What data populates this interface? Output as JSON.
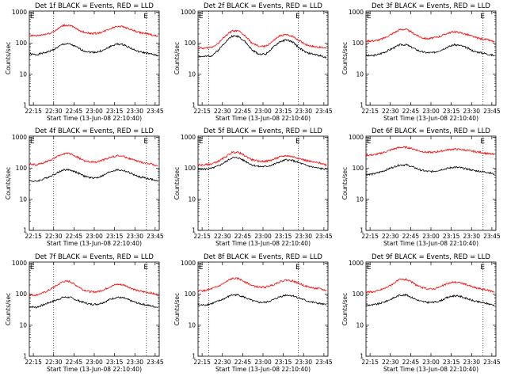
{
  "figure": {
    "xlabel": "Start Time (13-Jun-08 22:10:40)",
    "ylabel": "Counts/sec",
    "x_ticks": [
      "22:15",
      "22:30",
      "22:45",
      "23:00",
      "23:15",
      "23:30",
      "23:45"
    ],
    "y_ticks": [
      "1",
      "10",
      "100",
      "1000"
    ],
    "event_marker": "E",
    "colors": {
      "events": "#000000",
      "lld": "#ff0000",
      "dotted_line": "#000000"
    }
  },
  "chart_data": [
    {
      "type": "line",
      "title": "Det 1f BLACK = Events, RED = LLD",
      "x_unit": "minutes after 22:00",
      "x": [
        12,
        17,
        22,
        27,
        32,
        37,
        42,
        47,
        52,
        57,
        62,
        67,
        72,
        77,
        82,
        87,
        92,
        97,
        102,
        107
      ],
      "series": [
        {
          "name": "Events",
          "color": "#000000",
          "values": [
            45,
            43,
            48,
            55,
            70,
            95,
            95,
            75,
            58,
            52,
            52,
            60,
            80,
            95,
            90,
            70,
            55,
            50,
            45,
            40
          ]
        },
        {
          "name": "LLD",
          "color": "#ff0000",
          "values": [
            180,
            175,
            190,
            210,
            270,
            380,
            380,
            290,
            230,
            210,
            210,
            240,
            300,
            360,
            340,
            280,
            230,
            210,
            190,
            165
          ]
        }
      ],
      "ylim": [
        1,
        1100
      ],
      "y_scale": "log",
      "xlim": [
        12,
        108
      ],
      "vlines": [
        30,
        98.5
      ],
      "event_marks": [
        12.5,
        96.5
      ]
    },
    {
      "type": "line",
      "title": "Det 2f BLACK = Events, RED = LLD",
      "x_unit": "minutes after 22:00",
      "x": [
        12,
        17,
        22,
        27,
        32,
        37,
        42,
        47,
        52,
        57,
        62,
        67,
        72,
        77,
        82,
        87,
        92,
        97,
        102,
        107
      ],
      "series": [
        {
          "name": "Events",
          "color": "#000000",
          "values": [
            38,
            37,
            40,
            60,
            110,
            170,
            170,
            110,
            60,
            45,
            45,
            70,
            110,
            130,
            110,
            70,
            50,
            45,
            40,
            35
          ]
        },
        {
          "name": "LLD",
          "color": "#ff0000",
          "values": [
            70,
            70,
            75,
            100,
            170,
            250,
            250,
            170,
            100,
            80,
            80,
            115,
            170,
            190,
            170,
            120,
            90,
            80,
            75,
            70
          ]
        }
      ],
      "ylim": [
        1,
        1100
      ],
      "y_scale": "log",
      "xlim": [
        12,
        108
      ],
      "vlines": [
        20,
        86
      ],
      "event_marks": [
        12.5,
        84
      ]
    },
    {
      "type": "line",
      "title": "Det 3f BLACK = Events, RED = LLD",
      "x_unit": "minutes after 22:00",
      "x": [
        12,
        17,
        22,
        27,
        32,
        37,
        42,
        47,
        52,
        57,
        62,
        67,
        72,
        77,
        82,
        87,
        92,
        97,
        102,
        107
      ],
      "series": [
        {
          "name": "Events",
          "color": "#000000",
          "values": [
            40,
            40,
            45,
            55,
            70,
            90,
            90,
            70,
            55,
            50,
            50,
            60,
            75,
            90,
            85,
            70,
            55,
            50,
            45,
            40
          ]
        },
        {
          "name": "LLD",
          "color": "#ff0000",
          "values": [
            120,
            120,
            130,
            160,
            210,
            280,
            280,
            210,
            160,
            140,
            150,
            170,
            210,
            240,
            220,
            190,
            160,
            140,
            130,
            110
          ]
        }
      ],
      "ylim": [
        1,
        1100
      ],
      "y_scale": "log",
      "xlim": [
        12,
        108
      ],
      "vlines": [
        98.5
      ],
      "event_marks": [
        12.5,
        96.5
      ]
    },
    {
      "type": "line",
      "title": "Det 4f BLACK = Events, RED = LLD",
      "x_unit": "minutes after 22:00",
      "x": [
        12,
        17,
        22,
        27,
        32,
        37,
        42,
        47,
        52,
        57,
        62,
        67,
        72,
        77,
        82,
        87,
        92,
        97,
        102,
        107
      ],
      "series": [
        {
          "name": "Events",
          "color": "#000000",
          "values": [
            40,
            38,
            45,
            55,
            70,
            90,
            90,
            75,
            58,
            50,
            50,
            60,
            80,
            90,
            85,
            70,
            55,
            50,
            45,
            38
          ]
        },
        {
          "name": "LLD",
          "color": "#ff0000",
          "values": [
            140,
            130,
            150,
            180,
            230,
            300,
            300,
            240,
            180,
            160,
            160,
            190,
            230,
            260,
            240,
            200,
            170,
            150,
            140,
            120
          ]
        }
      ],
      "ylim": [
        1,
        1100
      ],
      "y_scale": "log",
      "xlim": [
        12,
        108
      ],
      "vlines": [
        30,
        98.5
      ],
      "event_marks": [
        12.5,
        96.5
      ]
    },
    {
      "type": "line",
      "title": "Det 5f BLACK = Events, RED = LLD",
      "x_unit": "minutes after 22:00",
      "x": [
        12,
        17,
        22,
        27,
        32,
        37,
        42,
        47,
        52,
        57,
        62,
        67,
        72,
        77,
        82,
        87,
        92,
        97,
        102,
        107
      ],
      "series": [
        {
          "name": "Events",
          "color": "#000000",
          "values": [
            95,
            95,
            100,
            120,
            160,
            220,
            220,
            170,
            130,
            115,
            115,
            130,
            160,
            190,
            180,
            150,
            125,
            110,
            100,
            95
          ]
        },
        {
          "name": "LLD",
          "color": "#ff0000",
          "values": [
            130,
            130,
            140,
            170,
            230,
            330,
            330,
            250,
            190,
            170,
            170,
            190,
            230,
            260,
            240,
            210,
            180,
            160,
            150,
            130
          ]
        }
      ],
      "ylim": [
        1,
        1100
      ],
      "y_scale": "log",
      "xlim": [
        12,
        108
      ],
      "vlines": [
        20,
        86
      ],
      "event_marks": [
        12.5,
        84
      ]
    },
    {
      "type": "line",
      "title": "Det 6f BLACK = Events, RED = LLD",
      "x_unit": "minutes after 22:00",
      "x": [
        12,
        17,
        22,
        27,
        32,
        37,
        42,
        47,
        52,
        57,
        62,
        67,
        72,
        77,
        82,
        87,
        92,
        97,
        102,
        107
      ],
      "series": [
        {
          "name": "Events",
          "color": "#000000",
          "values": [
            65,
            65,
            75,
            90,
            110,
            130,
            130,
            110,
            90,
            80,
            80,
            90,
            100,
            110,
            105,
            95,
            85,
            80,
            75,
            65
          ]
        },
        {
          "name": "LLD",
          "color": "#ff0000",
          "values": [
            270,
            270,
            300,
            350,
            420,
            480,
            480,
            430,
            360,
            330,
            330,
            360,
            400,
            420,
            410,
            380,
            350,
            330,
            300,
            280
          ]
        }
      ],
      "ylim": [
        1,
        1100
      ],
      "y_scale": "log",
      "xlim": [
        12,
        108
      ],
      "vlines": [
        98.5
      ],
      "event_marks": [
        12.5,
        96.5
      ]
    },
    {
      "type": "line",
      "title": "Det 7f BLACK = Events, RED = LLD",
      "x_unit": "minutes after 22:00",
      "x": [
        12,
        17,
        22,
        27,
        32,
        37,
        42,
        47,
        52,
        57,
        62,
        67,
        72,
        77,
        82,
        87,
        92,
        97,
        102,
        107
      ],
      "series": [
        {
          "name": "Events",
          "color": "#000000",
          "values": [
            40,
            38,
            45,
            55,
            65,
            80,
            80,
            65,
            55,
            48,
            48,
            55,
            70,
            80,
            75,
            62,
            52,
            47,
            42,
            38
          ]
        },
        {
          "name": "LLD",
          "color": "#ff0000",
          "values": [
            95,
            95,
            110,
            140,
            190,
            260,
            260,
            190,
            140,
            120,
            120,
            140,
            180,
            210,
            200,
            160,
            130,
            120,
            110,
            95
          ]
        }
      ],
      "ylim": [
        1,
        1100
      ],
      "y_scale": "log",
      "xlim": [
        12,
        108
      ],
      "vlines": [
        30,
        98.5
      ],
      "event_marks": [
        12.5,
        96.5
      ]
    },
    {
      "type": "line",
      "title": "Det 8f BLACK = Events, RED = LLD",
      "x_unit": "minutes after 22:00",
      "x": [
        12,
        17,
        22,
        27,
        32,
        37,
        42,
        47,
        52,
        57,
        62,
        67,
        72,
        77,
        82,
        87,
        92,
        97,
        102,
        107
      ],
      "series": [
        {
          "name": "Events",
          "color": "#000000",
          "values": [
            45,
            45,
            50,
            60,
            75,
            95,
            95,
            78,
            62,
            55,
            55,
            65,
            82,
            95,
            90,
            75,
            62,
            55,
            50,
            45
          ]
        },
        {
          "name": "LLD",
          "color": "#ff0000",
          "values": [
            130,
            130,
            150,
            180,
            240,
            320,
            320,
            250,
            190,
            170,
            170,
            200,
            250,
            290,
            270,
            220,
            180,
            160,
            150,
            130
          ]
        }
      ],
      "ylim": [
        1,
        1100
      ],
      "y_scale": "log",
      "xlim": [
        12,
        108
      ],
      "vlines": [
        20,
        86
      ],
      "event_marks": [
        12.5,
        84
      ]
    },
    {
      "type": "line",
      "title": "Det 9f BLACK = Events, RED = LLD",
      "x_unit": "minutes after 22:00",
      "x": [
        12,
        17,
        22,
        27,
        32,
        37,
        42,
        47,
        52,
        57,
        62,
        67,
        72,
        77,
        82,
        87,
        92,
        97,
        102,
        107
      ],
      "series": [
        {
          "name": "Events",
          "color": "#000000",
          "values": [
            45,
            45,
            50,
            60,
            75,
            95,
            95,
            75,
            60,
            55,
            55,
            62,
            78,
            90,
            85,
            72,
            60,
            55,
            50,
            44
          ]
        },
        {
          "name": "LLD",
          "color": "#ff0000",
          "values": [
            120,
            120,
            135,
            165,
            220,
            300,
            300,
            230,
            170,
            150,
            150,
            175,
            220,
            250,
            235,
            200,
            165,
            150,
            135,
            120
          ]
        }
      ],
      "ylim": [
        1,
        1100
      ],
      "y_scale": "log",
      "xlim": [
        12,
        108
      ],
      "vlines": [
        98.5
      ],
      "event_marks": [
        12.5,
        96.5
      ]
    }
  ]
}
